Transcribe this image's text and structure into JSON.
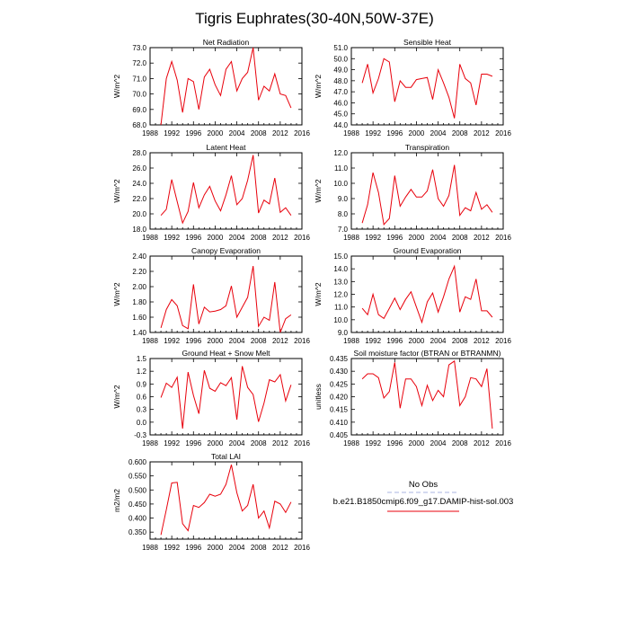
{
  "figure": {
    "title": "Tigris Euphrates(30-40N,50W-37E)"
  },
  "legend": {
    "entries": [
      {
        "label": "No Obs",
        "color": "#a9b4e0",
        "dash": true
      },
      {
        "label": "b.e21.B1850cmip6.f09_g17.DAMIP-hist-sol.003",
        "color": "#e8000b",
        "dash": false
      }
    ]
  },
  "chart_data": [
    {
      "type": "line",
      "title": "Net Radiation",
      "ylabel": "W/m^2",
      "xlim": [
        1988,
        2016
      ],
      "xticks": [
        "1988",
        "1992",
        "1996",
        "2000",
        "2004",
        "2008",
        "2012",
        "2016"
      ],
      "ylim": [
        68.0,
        73.0
      ],
      "yticks": [
        "68.0",
        "69.0",
        "70.0",
        "71.0",
        "72.0",
        "73.0"
      ],
      "x": [
        1990,
        1991,
        1992,
        1993,
        1994,
        1995,
        1996,
        1997,
        1998,
        1999,
        2000,
        2001,
        2002,
        2003,
        2004,
        2005,
        2006,
        2007,
        2008,
        2009,
        2010,
        2011,
        2012,
        2013,
        2014
      ],
      "series": [
        {
          "values": [
            68.0,
            71.0,
            72.1,
            70.9,
            68.8,
            71.0,
            70.8,
            69.0,
            71.1,
            71.6,
            70.6,
            69.9,
            71.6,
            72.1,
            70.2,
            71.0,
            71.4,
            73.0,
            69.6,
            70.5,
            70.2,
            71.3,
            70.0,
            69.9,
            69.1
          ]
        }
      ]
    },
    {
      "type": "line",
      "title": "Sensible Heat",
      "ylabel": "W/m^2",
      "xlim": [
        1988,
        2016
      ],
      "xticks": [
        "1988",
        "1992",
        "1996",
        "2000",
        "2004",
        "2008",
        "2012",
        "2016"
      ],
      "ylim": [
        44.0,
        51.0
      ],
      "yticks": [
        "44.0",
        "45.0",
        "46.0",
        "47.0",
        "48.0",
        "49.0",
        "50.0",
        "51.0"
      ],
      "x": [
        1990,
        1991,
        1992,
        1993,
        1994,
        1995,
        1996,
        1997,
        1998,
        1999,
        2000,
        2001,
        2002,
        2003,
        2004,
        2005,
        2006,
        2007,
        2008,
        2009,
        2010,
        2011,
        2012,
        2013,
        2014
      ],
      "series": [
        {
          "values": [
            47.8,
            49.5,
            46.9,
            48.2,
            50.0,
            49.7,
            46.1,
            48.0,
            47.4,
            47.4,
            48.1,
            48.2,
            48.3,
            46.3,
            49.0,
            47.8,
            46.5,
            44.6,
            49.5,
            48.2,
            47.8,
            45.8,
            48.6,
            48.6,
            48.4
          ]
        }
      ]
    },
    {
      "type": "line",
      "title": "Latent Heat",
      "ylabel": "W/m^2",
      "xlim": [
        1988,
        2016
      ],
      "xticks": [
        "1988",
        "1992",
        "1996",
        "2000",
        "2004",
        "2008",
        "2012",
        "2016"
      ],
      "ylim": [
        18.0,
        28.0
      ],
      "yticks": [
        "18.0",
        "20.0",
        "22.0",
        "24.0",
        "26.0",
        "28.0"
      ],
      "x": [
        1990,
        1991,
        1992,
        1993,
        1994,
        1995,
        1996,
        1997,
        1998,
        1999,
        2000,
        2001,
        2002,
        2003,
        2004,
        2005,
        2006,
        2007,
        2008,
        2009,
        2010,
        2011,
        2012,
        2013,
        2014
      ],
      "series": [
        {
          "values": [
            19.8,
            20.6,
            24.5,
            21.6,
            18.8,
            20.3,
            24.1,
            20.8,
            22.5,
            23.6,
            21.7,
            20.4,
            22.5,
            25.0,
            21.2,
            22.0,
            24.4,
            27.7,
            20.1,
            21.8,
            21.3,
            24.7,
            20.2,
            20.8,
            19.8
          ]
        }
      ]
    },
    {
      "type": "line",
      "title": "Transpiration",
      "ylabel": "W/m^2",
      "xlim": [
        1988,
        2016
      ],
      "xticks": [
        "1988",
        "1992",
        "1996",
        "2000",
        "2004",
        "2008",
        "2012",
        "2016"
      ],
      "ylim": [
        7.0,
        12.0
      ],
      "yticks": [
        "7.0",
        "8.0",
        "9.0",
        "10.0",
        "11.0",
        "12.0"
      ],
      "x": [
        1990,
        1991,
        1992,
        1993,
        1994,
        1995,
        1996,
        1997,
        1998,
        1999,
        2000,
        2001,
        2002,
        2003,
        2004,
        2005,
        2006,
        2007,
        2008,
        2009,
        2010,
        2011,
        2012,
        2013,
        2014
      ],
      "series": [
        {
          "values": [
            7.4,
            8.6,
            10.7,
            9.4,
            7.3,
            7.7,
            10.5,
            8.5,
            9.1,
            9.6,
            9.1,
            9.1,
            9.5,
            10.9,
            9.0,
            8.5,
            9.2,
            11.2,
            7.9,
            8.4,
            8.2,
            9.4,
            8.3,
            8.6,
            8.1
          ]
        }
      ]
    },
    {
      "type": "line",
      "title": "Canopy Evaporation",
      "ylabel": "W/m^2",
      "xlim": [
        1988,
        2016
      ],
      "xticks": [
        "1988",
        "1992",
        "1996",
        "2000",
        "2004",
        "2008",
        "2012",
        "2016"
      ],
      "ylim": [
        1.4,
        2.4
      ],
      "yticks": [
        "1.40",
        "1.60",
        "1.80",
        "2.00",
        "2.20",
        "2.40"
      ],
      "x": [
        1990,
        1991,
        1992,
        1993,
        1994,
        1995,
        1996,
        1997,
        1998,
        1999,
        2000,
        2001,
        2002,
        2003,
        2004,
        2005,
        2006,
        2007,
        2008,
        2009,
        2010,
        2011,
        2012,
        2013,
        2014
      ],
      "series": [
        {
          "values": [
            1.46,
            1.7,
            1.83,
            1.75,
            1.49,
            1.45,
            2.03,
            1.51,
            1.73,
            1.67,
            1.68,
            1.7,
            1.75,
            2.01,
            1.6,
            1.73,
            1.86,
            2.27,
            1.48,
            1.6,
            1.56,
            2.06,
            1.4,
            1.58,
            1.63
          ]
        }
      ]
    },
    {
      "type": "line",
      "title": "Ground Evaporation",
      "ylabel": "W/m^2",
      "xlim": [
        1988,
        2016
      ],
      "xticks": [
        "1988",
        "1992",
        "1996",
        "2000",
        "2004",
        "2008",
        "2012",
        "2016"
      ],
      "ylim": [
        9.0,
        15.0
      ],
      "yticks": [
        "9.0",
        "10.0",
        "11.0",
        "12.0",
        "13.0",
        "14.0",
        "15.0"
      ],
      "x": [
        1990,
        1991,
        1992,
        1993,
        1994,
        1995,
        1996,
        1997,
        1998,
        1999,
        2000,
        2001,
        2002,
        2003,
        2004,
        2005,
        2006,
        2007,
        2008,
        2009,
        2010,
        2011,
        2012,
        2013,
        2014
      ],
      "series": [
        {
          "values": [
            10.9,
            10.4,
            12.0,
            10.4,
            10.1,
            10.9,
            11.7,
            10.8,
            11.6,
            12.2,
            11.0,
            9.8,
            11.4,
            12.1,
            10.6,
            11.8,
            13.2,
            14.2,
            10.6,
            11.8,
            11.6,
            13.2,
            10.7,
            10.7,
            10.2
          ]
        }
      ]
    },
    {
      "type": "line",
      "title": "Ground Heat + Snow Melt",
      "ylabel": "W/m^2",
      "xlim": [
        1988,
        2016
      ],
      "xticks": [
        "1988",
        "1992",
        "1996",
        "2000",
        "2004",
        "2008",
        "2012",
        "2016"
      ],
      "ylim": [
        -0.3,
        1.5
      ],
      "yticks": [
        "-0.3",
        "0.0",
        "0.3",
        "0.6",
        "0.9",
        "1.2",
        "1.5"
      ],
      "x": [
        1990,
        1991,
        1992,
        1993,
        1994,
        1995,
        1996,
        1997,
        1998,
        1999,
        2000,
        2001,
        2002,
        2003,
        2004,
        2005,
        2006,
        2007,
        2008,
        2009,
        2010,
        2011,
        2012,
        2013,
        2014
      ],
      "series": [
        {
          "values": [
            0.58,
            0.92,
            0.82,
            1.06,
            -0.15,
            1.18,
            0.63,
            0.2,
            1.22,
            0.8,
            0.73,
            0.93,
            0.86,
            1.05,
            0.06,
            1.32,
            0.82,
            0.65,
            0.01,
            0.45,
            1.0,
            0.95,
            1.12,
            0.5,
            0.88
          ]
        }
      ]
    },
    {
      "type": "line",
      "title": "Soil moisture factor (BTRAN or BTRANMN)",
      "ylabel": "unitless",
      "xlim": [
        1988,
        2016
      ],
      "xticks": [
        "1988",
        "1992",
        "1996",
        "2000",
        "2004",
        "2008",
        "2012",
        "2016"
      ],
      "ylim": [
        0.405,
        0.435
      ],
      "yticks": [
        "0.405",
        "0.410",
        "0.415",
        "0.420",
        "0.425",
        "0.430",
        "0.435"
      ],
      "x": [
        1990,
        1991,
        1992,
        1993,
        1994,
        1995,
        1996,
        1997,
        1998,
        1999,
        2000,
        2001,
        2002,
        2003,
        2004,
        2005,
        2006,
        2007,
        2008,
        2009,
        2010,
        2011,
        2012,
        2013,
        2014
      ],
      "series": [
        {
          "values": [
            0.427,
            0.429,
            0.429,
            0.4275,
            0.4195,
            0.422,
            0.4335,
            0.4155,
            0.427,
            0.427,
            0.424,
            0.4165,
            0.4245,
            0.4185,
            0.4225,
            0.42,
            0.4325,
            0.434,
            0.4165,
            0.42,
            0.4275,
            0.427,
            0.424,
            0.431,
            0.4075
          ]
        }
      ]
    },
    {
      "type": "line",
      "title": "Total LAI",
      "ylabel": "m2/m2",
      "xlim": [
        1988,
        2016
      ],
      "xticks": [
        "1988",
        "1992",
        "1996",
        "2000",
        "2004",
        "2008",
        "2012",
        "2016"
      ],
      "ylim": [
        0.325,
        0.6
      ],
      "yticks": [
        "0.350",
        "0.400",
        "0.450",
        "0.500",
        "0.550",
        "0.600"
      ],
      "x": [
        1990,
        1991,
        1992,
        1993,
        1994,
        1995,
        1996,
        1997,
        1998,
        1999,
        2000,
        2001,
        2002,
        2003,
        2004,
        2005,
        2006,
        2007,
        2008,
        2009,
        2010,
        2011,
        2012,
        2013,
        2014
      ],
      "series": [
        {
          "values": [
            0.34,
            0.43,
            0.525,
            0.527,
            0.38,
            0.355,
            0.445,
            0.438,
            0.455,
            0.485,
            0.478,
            0.485,
            0.52,
            0.59,
            0.49,
            0.425,
            0.445,
            0.52,
            0.4,
            0.425,
            0.365,
            0.46,
            0.45,
            0.42,
            0.457
          ]
        }
      ]
    }
  ]
}
